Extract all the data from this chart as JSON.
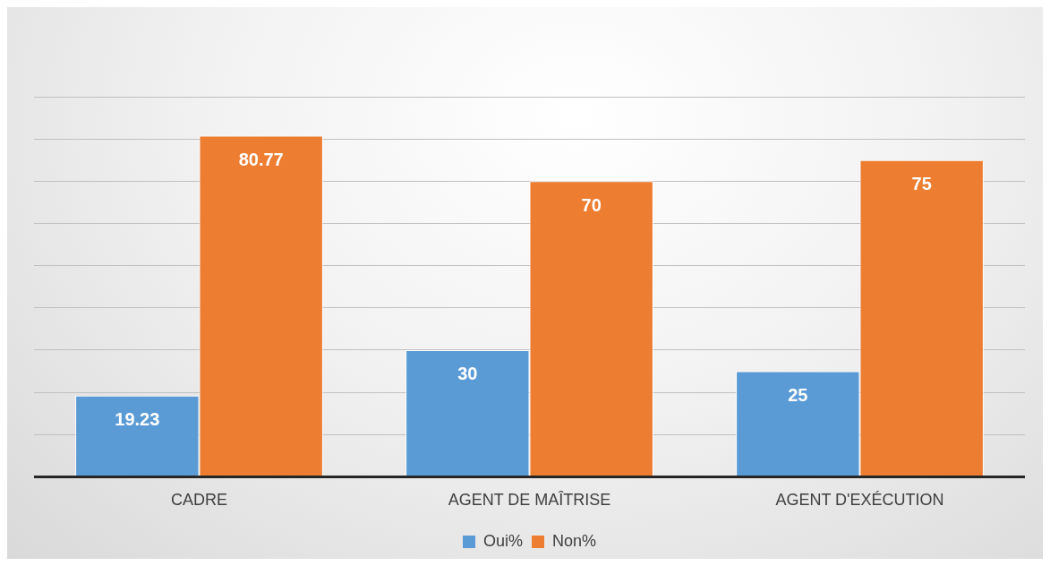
{
  "chart_data": {
    "type": "bar",
    "categories": [
      "CADRE",
      "AGENT DE MAÎTRISE",
      "AGENT D'EXÉCUTION"
    ],
    "series": [
      {
        "name": "Oui%",
        "color": "#5b9bd5",
        "values": [
          19.23,
          30,
          25
        ]
      },
      {
        "name": "Non%",
        "color": "#ed7d31",
        "values": [
          80.77,
          70,
          75
        ]
      }
    ],
    "ylim": [
      0,
      90
    ],
    "yticks": [
      {
        "value": 0,
        "label": null
      },
      {
        "value": 10,
        "label": null
      },
      {
        "value": 20,
        "label": null
      },
      {
        "value": 30,
        "label": null
      },
      {
        "value": 40,
        "label": null
      },
      {
        "value": 50,
        "label": null
      },
      {
        "value": 60,
        "label": null
      },
      {
        "value": 70,
        "label": null
      },
      {
        "value": 80,
        "label": null
      },
      {
        "value": 90,
        "label": null
      }
    ],
    "tick_labels": "x",
    "grid": "y",
    "legend": "bottom",
    "data_labels": true
  }
}
